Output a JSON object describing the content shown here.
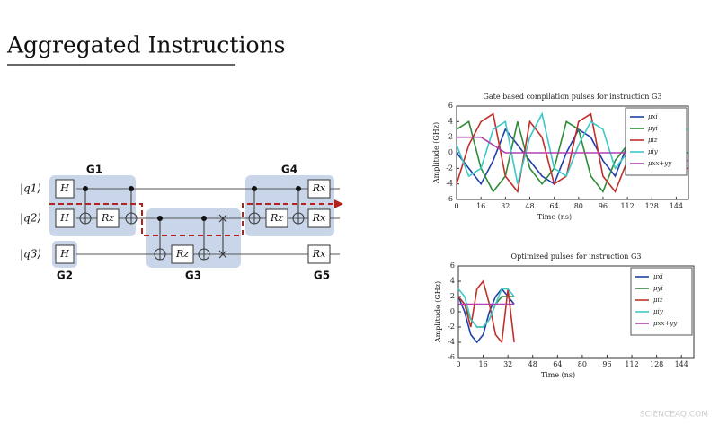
{
  "title": "Aggregated Instructions",
  "watermark": "SCIENCEAQ.COM",
  "circuit": {
    "qubits": [
      "|q1⟩",
      "|q2⟩",
      "|q3⟩"
    ],
    "gates": [
      "H",
      "H",
      "H",
      "Rz",
      "Rz",
      "Rz",
      "Rx",
      "Rx",
      "Rx"
    ],
    "groups": [
      "G1",
      "G2",
      "G3",
      "G4",
      "G5"
    ]
  },
  "chart_data": [
    {
      "type": "line",
      "title": "Gate based compilation pulses for instruction G3",
      "xlabel": "Time (ns)",
      "ylabel": "Amplitude (GHz)",
      "xlim": [
        0,
        152
      ],
      "xticks": [
        0,
        16,
        32,
        48,
        64,
        80,
        96,
        112,
        128,
        144
      ],
      "ylim": [
        -6,
        6
      ],
      "yticks": [
        -6,
        -4,
        -2,
        0,
        2,
        4,
        6
      ],
      "legend": "upper right",
      "x": [
        0,
        8,
        16,
        24,
        32,
        40,
        48,
        56,
        64,
        72,
        80,
        88,
        96,
        104,
        112,
        120,
        128,
        136,
        144,
        152
      ],
      "series": [
        {
          "name": "μxi",
          "color": "#1f3fa8",
          "values": [
            0,
            -2,
            -4,
            -1,
            3,
            1,
            -1,
            -3,
            -4,
            0,
            3,
            2,
            -1,
            -3,
            1,
            -1,
            0,
            0,
            0,
            0
          ]
        },
        {
          "name": "μyi",
          "color": "#2e8b3a",
          "values": [
            3,
            4,
            -2,
            -5,
            -3,
            4,
            -2,
            -4,
            -2,
            4,
            3,
            -3,
            -5,
            -1,
            1,
            0,
            0,
            0,
            0,
            0
          ]
        },
        {
          "name": "μiz",
          "color": "#c0302a",
          "values": [
            -4,
            1,
            4,
            5,
            -3,
            -5,
            4,
            2,
            -4,
            -3,
            4,
            5,
            -3,
            -5,
            -1,
            -2,
            -2,
            -2,
            -2,
            -2
          ]
        },
        {
          "name": "μiy",
          "color": "#3cc8c8",
          "values": [
            1,
            -3,
            -2,
            3,
            4,
            -4,
            2,
            5,
            -2,
            -3,
            1,
            4,
            3,
            -2,
            0,
            3,
            3,
            3,
            3,
            3
          ]
        },
        {
          "name": "μxx+yy",
          "color": "#b040b0",
          "values": [
            2,
            2,
            2,
            1,
            0,
            0,
            0,
            0,
            0,
            0,
            0,
            0,
            0,
            0,
            0,
            -1,
            -1,
            -1,
            -1,
            -1
          ]
        }
      ]
    },
    {
      "type": "line",
      "title": "Optimized pulses for instruction G3",
      "xlabel": "Time (ns)",
      "ylabel": "Amplitude (GHz)",
      "xlim": [
        0,
        152
      ],
      "xticks": [
        0,
        16,
        32,
        48,
        64,
        80,
        96,
        112,
        128,
        144
      ],
      "ylim": [
        -6,
        6
      ],
      "yticks": [
        -6,
        -4,
        -2,
        0,
        2,
        4,
        6
      ],
      "legend": "upper right",
      "x": [
        0,
        4,
        8,
        12,
        16,
        20,
        24,
        28,
        32,
        36
      ],
      "series": [
        {
          "name": "μxi",
          "color": "#1f3fa8",
          "values": [
            2,
            0,
            -3,
            -4,
            -3,
            0,
            2,
            3,
            2,
            1
          ]
        },
        {
          "name": "μyi",
          "color": "#2e8b3a",
          "values": [
            2,
            1,
            -1,
            -2,
            -2,
            -1,
            1,
            2,
            2,
            2
          ]
        },
        {
          "name": "μiz",
          "color": "#c0302a",
          "values": [
            2,
            1,
            -2,
            3,
            4,
            1,
            -3,
            -4,
            3,
            -4
          ]
        },
        {
          "name": "μiy",
          "color": "#3cc8c8",
          "values": [
            3,
            2,
            -1,
            -2,
            -2,
            -1,
            1,
            3,
            3,
            2
          ]
        },
        {
          "name": "μxx+yy",
          "color": "#b040b0",
          "values": [
            1,
            1,
            1,
            1,
            1,
            1,
            1,
            1,
            1,
            1
          ]
        }
      ]
    }
  ]
}
